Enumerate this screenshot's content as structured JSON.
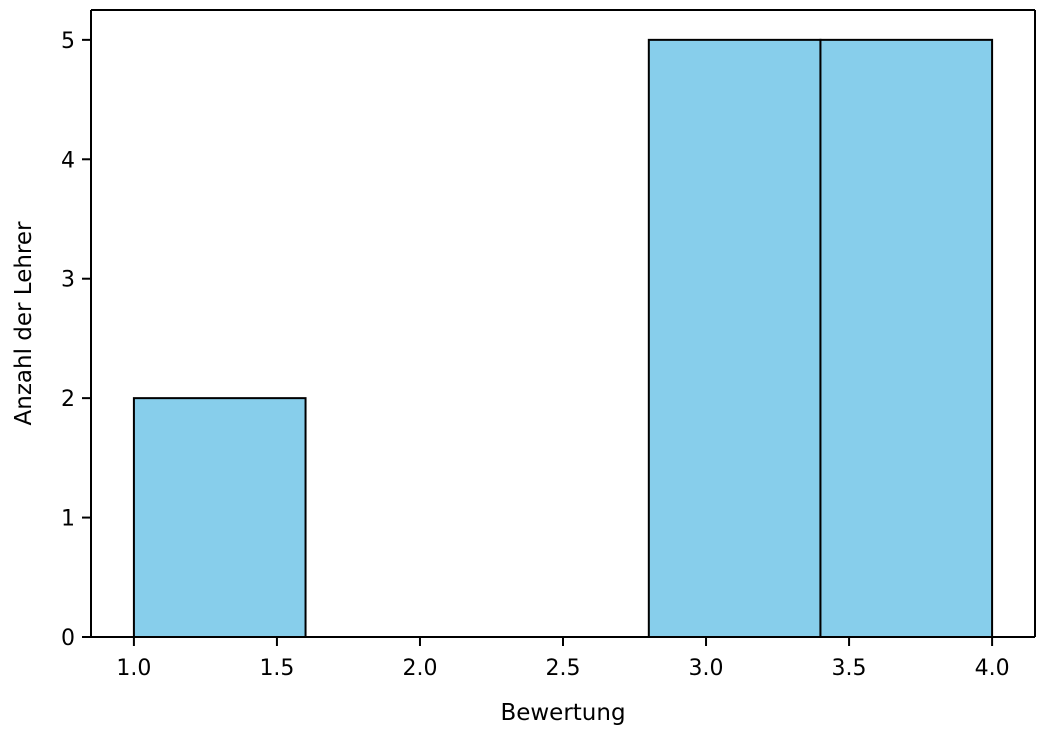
{
  "chart_data": {
    "type": "bar",
    "title": "",
    "xlabel": "Bewertung",
    "ylabel": "Anzahl der Lehrer",
    "bins": [
      {
        "x0": 1.0,
        "x1": 1.6,
        "count": 2
      },
      {
        "x0": 1.6,
        "x1": 2.2,
        "count": 0
      },
      {
        "x0": 2.2,
        "x1": 2.8,
        "count": 0
      },
      {
        "x0": 2.8,
        "x1": 3.4,
        "count": 5
      },
      {
        "x0": 3.4,
        "x1": 4.0,
        "count": 5
      }
    ],
    "xlim": [
      0.85,
      4.15
    ],
    "ylim": [
      0,
      5.25
    ],
    "xticks": [
      "1.0",
      "1.5",
      "2.0",
      "2.5",
      "3.0",
      "3.5",
      "4.0"
    ],
    "yticks": [
      "0",
      "1",
      "2",
      "3",
      "4",
      "5"
    ],
    "grid": false,
    "legend": "none",
    "colors": {
      "bar_fill": "#87CEEB",
      "bar_edge": "#000000",
      "axis": "#000000"
    }
  }
}
